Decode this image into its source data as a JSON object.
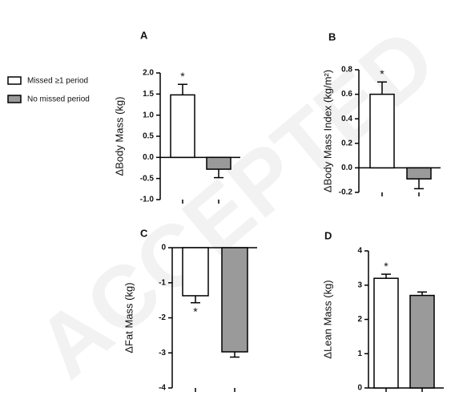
{
  "legend": [
    {
      "name": "Missed ≥1 period",
      "color": "#ffffff"
    },
    {
      "name": "No missed period",
      "color": "#9a9a9a"
    }
  ],
  "watermark": "ACCEPTED",
  "chart_data": [
    {
      "type": "bar",
      "panel": "A",
      "ylabel": "ΔBody Mass (kg)",
      "values": [
        1.48,
        -0.28
      ],
      "errors": [
        0.25,
        0.2
      ],
      "annotation": "*",
      "ylim": [
        -1,
        2
      ],
      "yticks": [
        {
          "value": -1,
          "label": "-1.0"
        },
        {
          "value": -0.5,
          "label": "-0.5"
        },
        {
          "value": 0,
          "label": "0.0"
        },
        {
          "value": 0.5,
          "label": "0.5"
        },
        {
          "value": 1,
          "label": "1.0"
        },
        {
          "value": 1.5,
          "label": "1.5"
        },
        {
          "value": 2,
          "label": "2.0"
        }
      ]
    },
    {
      "type": "bar",
      "panel": "B",
      "ylabel": "ΔBody Mass  Index (kg/m²)",
      "values": [
        0.6,
        -0.09
      ],
      "errors": [
        0.1,
        0.08
      ],
      "annotation": "*",
      "ylim": [
        -0.2,
        0.8
      ],
      "yticks": [
        {
          "value": -0.2,
          "label": "-0.2"
        },
        {
          "value": 0,
          "label": "0.0"
        },
        {
          "value": 0.2,
          "label": "0.2"
        },
        {
          "value": 0.4,
          "label": "0.4"
        },
        {
          "value": 0.6,
          "label": "0.6"
        },
        {
          "value": 0.8,
          "label": "0.8"
        }
      ]
    },
    {
      "type": "bar",
      "panel": "C",
      "ylabel": "ΔFat Mass (kg)",
      "values": [
        -1.37,
        -2.97
      ],
      "errors": [
        0.2,
        0.15
      ],
      "annotation": "*",
      "ylim": [
        -4,
        0
      ],
      "yticks": [
        -4,
        -3,
        -2,
        -1,
        0
      ]
    },
    {
      "type": "bar",
      "panel": "D",
      "ylabel": "ΔLean Mass (kg)",
      "values": [
        3.2,
        2.7
      ],
      "errors": [
        0.12,
        0.1
      ],
      "annotation": "*",
      "ylim": [
        0,
        4
      ],
      "yticks": [
        0,
        1,
        2,
        3,
        4
      ]
    }
  ]
}
